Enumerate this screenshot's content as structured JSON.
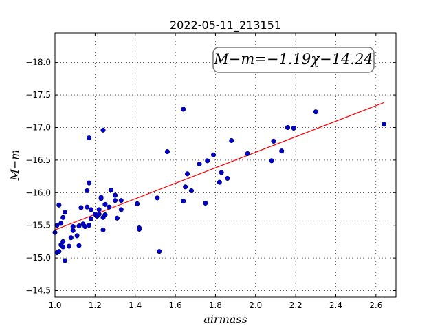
{
  "chart_data": {
    "type": "scatter",
    "title": "2022-05-11_213151",
    "xlabel": "airmass",
    "ylabel": "M−m",
    "xlim": [
      1.0,
      2.7
    ],
    "ylim": [
      -18.45,
      -14.4
    ],
    "y_inverted": true,
    "grid": true,
    "x_ticks": [
      1.0,
      1.2,
      1.4,
      1.6,
      1.8,
      2.0,
      2.2,
      2.4,
      2.6
    ],
    "x_tick_labels": [
      "1.0",
      "1.2",
      "1.4",
      "1.6",
      "1.8",
      "2.0",
      "2.2",
      "2.4",
      "2.6"
    ],
    "y_ticks": [
      -14.5,
      -15.0,
      -15.5,
      -16.0,
      -16.5,
      -17.0,
      -17.5,
      -18.0
    ],
    "y_tick_labels": [
      "−14.5",
      "−15.0",
      "−15.5",
      "−16.0",
      "−16.5",
      "−17.0",
      "−17.5",
      "−18.0"
    ],
    "annotation": "M−m=−1.19χ−14.24",
    "fit": {
      "slope": -1.19,
      "intercept": -14.24,
      "x_range": [
        1.0,
        2.64
      ],
      "color": "#ff0000"
    },
    "point_color": "#0000cc",
    "points": [
      [
        1.0,
        -15.39
      ],
      [
        1.01,
        -15.08
      ],
      [
        1.02,
        -15.1
      ],
      [
        1.03,
        -15.2
      ],
      [
        1.04,
        -15.17
      ],
      [
        1.04,
        -15.25
      ],
      [
        1.05,
        -14.96
      ],
      [
        1.01,
        -15.5
      ],
      [
        1.03,
        -15.53
      ],
      [
        1.04,
        -15.62
      ],
      [
        1.05,
        -15.7
      ],
      [
        1.02,
        -15.81
      ],
      [
        1.07,
        -15.18
      ],
      [
        1.08,
        -15.31
      ],
      [
        1.09,
        -15.42
      ],
      [
        1.09,
        -15.48
      ],
      [
        1.11,
        -15.34
      ],
      [
        1.12,
        -15.19
      ],
      [
        1.12,
        -15.49
      ],
      [
        1.14,
        -15.52
      ],
      [
        1.15,
        -15.48
      ],
      [
        1.13,
        -15.77
      ],
      [
        1.16,
        -15.78
      ],
      [
        1.16,
        -16.03
      ],
      [
        1.17,
        -15.5
      ],
      [
        1.18,
        -15.6
      ],
      [
        1.18,
        -15.74
      ],
      [
        1.2,
        -15.67
      ],
      [
        1.21,
        -15.64
      ],
      [
        1.22,
        -15.67
      ],
      [
        1.22,
        -15.74
      ],
      [
        1.23,
        -15.91
      ],
      [
        1.23,
        -15.93
      ],
      [
        1.24,
        -15.62
      ],
      [
        1.24,
        -15.43
      ],
      [
        1.25,
        -15.66
      ],
      [
        1.25,
        -15.82
      ],
      [
        1.17,
        -16.15
      ],
      [
        1.17,
        -16.84
      ],
      [
        1.24,
        -16.96
      ],
      [
        1.27,
        -15.78
      ],
      [
        1.28,
        -16.04
      ],
      [
        1.3,
        -15.88
      ],
      [
        1.3,
        -15.96
      ],
      [
        1.31,
        -15.61
      ],
      [
        1.33,
        -15.74
      ],
      [
        1.33,
        -15.88
      ],
      [
        1.41,
        -15.83
      ],
      [
        1.42,
        -15.46
      ],
      [
        1.42,
        -15.44
      ],
      [
        1.51,
        -15.92
      ],
      [
        1.52,
        -15.1
      ],
      [
        1.56,
        -16.63
      ],
      [
        1.64,
        -15.87
      ],
      [
        1.64,
        -17.28
      ],
      [
        1.65,
        -16.09
      ],
      [
        1.66,
        -16.29
      ],
      [
        1.68,
        -16.03
      ],
      [
        1.72,
        -16.44
      ],
      [
        1.75,
        -15.84
      ],
      [
        1.76,
        -16.49
      ],
      [
        1.79,
        -16.58
      ],
      [
        1.82,
        -16.16
      ],
      [
        1.83,
        -16.31
      ],
      [
        1.86,
        -16.22
      ],
      [
        1.88,
        -16.8
      ],
      [
        1.96,
        -16.6
      ],
      [
        2.08,
        -16.49
      ],
      [
        2.09,
        -16.79
      ],
      [
        2.13,
        -16.64
      ],
      [
        2.16,
        -17.0
      ],
      [
        2.19,
        -16.99
      ],
      [
        2.3,
        -17.24
      ],
      [
        2.64,
        -17.05
      ]
    ]
  }
}
